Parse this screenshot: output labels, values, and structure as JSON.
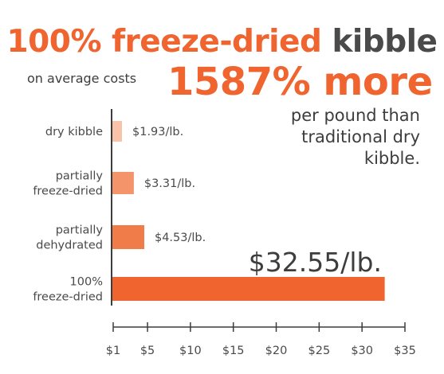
{
  "headline": {
    "accent_text": "100% freeze-dried",
    "dark_text": "kibble"
  },
  "subheadline": {
    "lead": "on average costs",
    "stat": "1587% more",
    "tail": [
      "per pound than",
      "traditional dry",
      "kibble."
    ]
  },
  "colors": {
    "accent": "#f0642f",
    "dark": "#4a4a4a"
  },
  "chart_data": {
    "type": "bar",
    "orientation": "horizontal",
    "title": "",
    "xlabel": "",
    "ylabel": "",
    "categories": [
      [
        "dry kibble"
      ],
      [
        "partially",
        "freeze-dried"
      ],
      [
        "partially",
        "dehydrated"
      ],
      [
        "100%",
        "freeze-dried"
      ]
    ],
    "values": [
      1.93,
      3.31,
      4.53,
      32.55
    ],
    "value_labels": [
      "$1.93/lb.",
      "$3.31/lb.",
      "$4.53/lb.",
      "$32.55/lb."
    ],
    "bar_colors": [
      "#f8c3a8",
      "#f3946a",
      "#f07c4a",
      "#f0642f"
    ],
    "xlim": [
      1,
      35
    ],
    "xticks": [
      1,
      5,
      10,
      15,
      20,
      25,
      30,
      35
    ],
    "xtick_labels": [
      "$1",
      "$5",
      "$10",
      "$15",
      "$20",
      "$25",
      "$30",
      "$35"
    ],
    "grid": false,
    "legend": "none"
  }
}
